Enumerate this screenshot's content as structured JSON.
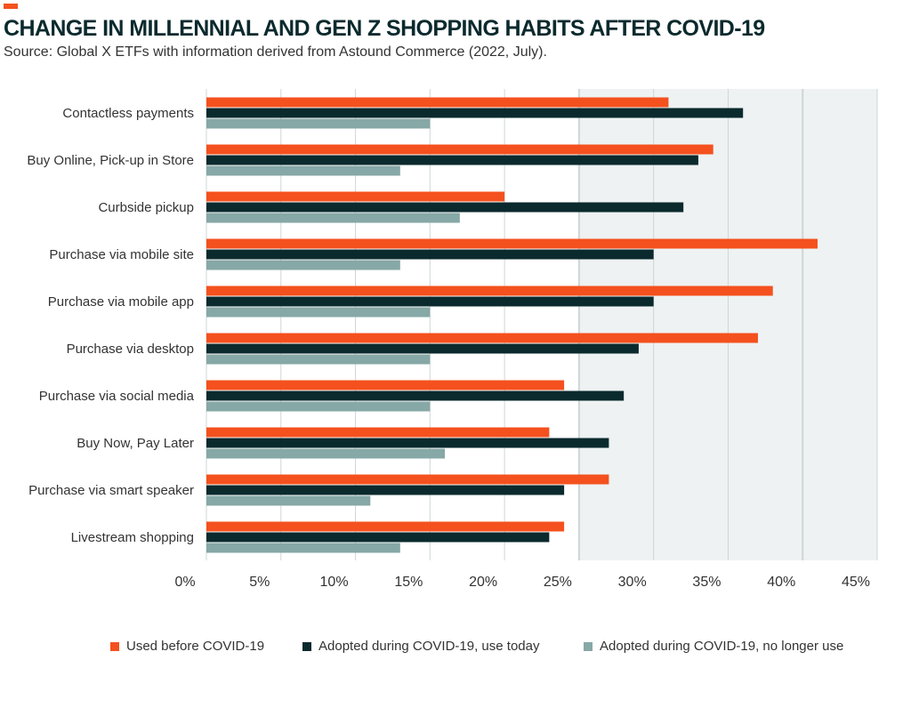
{
  "header": {
    "title": "CHANGE IN MILLENNIAL AND GEN Z SHOPPING HABITS AFTER COVID-19",
    "subtitle": "Source: Global X ETFs with information derived from Astound Commerce (2022, July)."
  },
  "colors": {
    "accent": "#f4511e",
    "series_before": "#f4511e",
    "series_use_today": "#0b2a2e",
    "series_no_longer": "#86a8a6",
    "plot_shade": "#eef2f2",
    "gridline": "#cfd6d6"
  },
  "chart_data": {
    "type": "bar",
    "orientation": "horizontal",
    "categories": [
      "Contactless payments",
      "Buy Online, Pick-up in Store",
      "Curbside pickup",
      "Purchase via mobile site",
      "Purchase via mobile app",
      "Purchase via desktop",
      "Purchase via social media",
      "Buy Now, Pay Later",
      "Purchase via smart speaker",
      "Livestream shopping"
    ],
    "series": [
      {
        "name": "Used before COVID-19",
        "color": "#f4511e",
        "values": [
          31,
          34,
          20,
          41,
          38,
          37,
          24,
          23,
          27,
          24
        ]
      },
      {
        "name": "Adopted during COVID-19, use today",
        "color": "#0b2a2e",
        "values": [
          36,
          33,
          32,
          30,
          30,
          29,
          28,
          27,
          24,
          23
        ]
      },
      {
        "name": "Adopted during COVID-19, no longer use",
        "color": "#86a8a6",
        "values": [
          15,
          13,
          17,
          13,
          15,
          15,
          15,
          16,
          11,
          13
        ]
      }
    ],
    "x_ticks": [
      "0%",
      "5%",
      "10%",
      "15%",
      "20%",
      "25%",
      "30%",
      "35%",
      "40%",
      "45%"
    ],
    "xlim": [
      0,
      45
    ],
    "title": "CHANGE IN MILLENNIAL AND GEN Z SHOPPING HABITS AFTER COVID-19",
    "subtitle": "Source: Global X ETFs with information derived from Astound Commerce (2022, July).",
    "xlabel": "",
    "ylabel": "",
    "grid": true,
    "legend_position": "bottom"
  }
}
